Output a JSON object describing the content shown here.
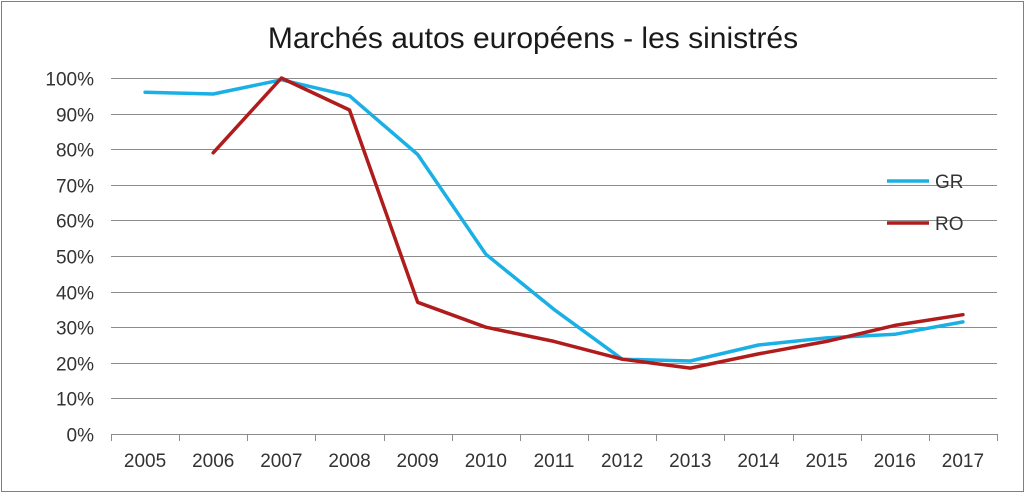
{
  "chart_data": {
    "type": "line",
    "title": "Marchés autos européens - les sinistrés",
    "xlabel": "",
    "ylabel": "",
    "categories": [
      "2005",
      "2006",
      "2007",
      "2008",
      "2009",
      "2010",
      "2011",
      "2012",
      "2013",
      "2014",
      "2015",
      "2016",
      "2017"
    ],
    "y_tick_labels": [
      "0%",
      "10%",
      "20%",
      "30%",
      "40%",
      "50%",
      "60%",
      "70%",
      "80%",
      "90%",
      "100%"
    ],
    "ylim": [
      0,
      100
    ],
    "grid": true,
    "legend_position": "right",
    "series": [
      {
        "name": "GR",
        "color": "#1ab0e6",
        "values": [
          96,
          95.5,
          99.5,
          95,
          78.5,
          50.5,
          35,
          21,
          20.5,
          25,
          27,
          28,
          31.5
        ]
      },
      {
        "name": "RO",
        "color": "#b01c1c",
        "values": [
          null,
          79,
          100,
          91,
          37,
          30,
          26,
          21,
          18.5,
          22.5,
          26,
          30.5,
          33.5
        ]
      }
    ]
  }
}
